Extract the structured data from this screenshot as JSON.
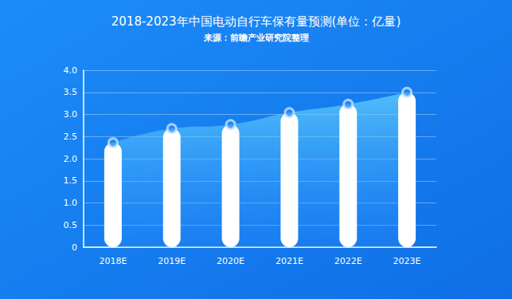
{
  "chart_data": {
    "type": "bar",
    "title": "2018-2023年中国电动自行车保有量预测(单位：亿量)",
    "subtitle": "来源：前瞻产业研究院整理",
    "categories": [
      "2018E",
      "2019E",
      "2020E",
      "2021E",
      "2022E",
      "2023E"
    ],
    "values": [
      2.36,
      2.68,
      2.77,
      3.04,
      3.23,
      3.5
    ],
    "color": "#ffffff",
    "ylim": [
      0,
      4
    ],
    "yticks": [
      0,
      0.5,
      {
        "value": 1,
        "label": "1.0"
      },
      1.5,
      {
        "value": 2,
        "label": "2.0"
      },
      2.5,
      {
        "value": 3,
        "label": "3.0"
      },
      3.5,
      {
        "value": 4,
        "label": "4.0"
      }
    ],
    "grid": true
  }
}
